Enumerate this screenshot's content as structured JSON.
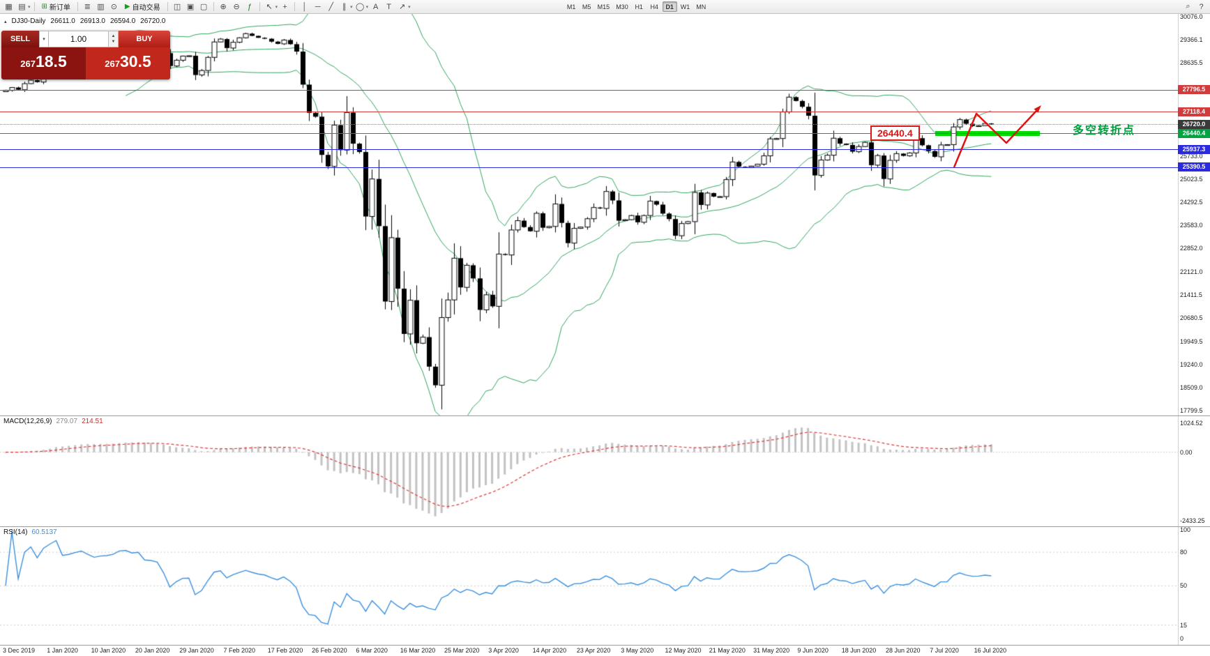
{
  "toolbar": {
    "items": [
      {
        "t": "icon",
        "name": "new-chart-icon",
        "g": "▦"
      },
      {
        "t": "icon",
        "name": "chart-profiles-icon",
        "g": "▤",
        "caret": true
      },
      {
        "t": "sep"
      },
      {
        "t": "btn",
        "name": "new-order-button",
        "icon_name": "new-order-icon",
        "g": "⊞",
        "color": "#2e8b2e",
        "label": "新订单"
      },
      {
        "t": "sep"
      },
      {
        "t": "icon",
        "name": "market-depth-icon",
        "g": "≣"
      },
      {
        "t": "icon",
        "name": "data-window-icon",
        "g": "▥"
      },
      {
        "t": "icon",
        "name": "strategy-navigator-icon",
        "g": "⊙"
      },
      {
        "t": "btn",
        "name": "auto-trading-button",
        "icon_name": "autotrade-play-icon",
        "g": "▶",
        "color": "#14a014",
        "label": "自动交易"
      },
      {
        "t": "sep"
      },
      {
        "t": "icon",
        "name": "tile-windows-icon",
        "g": "◫"
      },
      {
        "t": "icon",
        "name": "cascade-windows-icon",
        "g": "▣"
      },
      {
        "t": "icon",
        "name": "arrange-windows-icon",
        "g": "▢"
      },
      {
        "t": "sep"
      },
      {
        "t": "icon",
        "name": "zoom-in-icon",
        "g": "⊕"
      },
      {
        "t": "icon",
        "name": "zoom-out-icon",
        "g": "⊖"
      },
      {
        "t": "icon",
        "name": "indicators-icon",
        "g": "ƒ",
        "color": "#1c7a1c"
      },
      {
        "t": "sep"
      },
      {
        "t": "icon",
        "name": "cursor-icon",
        "g": "↖",
        "caret": true
      },
      {
        "t": "icon",
        "name": "crosshair-icon",
        "g": "+"
      },
      {
        "t": "sep"
      },
      {
        "t": "icon",
        "name": "vertical-line-icon",
        "g": "│"
      },
      {
        "t": "icon",
        "name": "horizontal-line-icon",
        "g": "─"
      },
      {
        "t": "icon",
        "name": "trendline-icon",
        "g": "╱"
      },
      {
        "t": "icon",
        "name": "equidistant-channel-icon",
        "g": "∥",
        "caret": true
      },
      {
        "t": "icon",
        "name": "shapes-icon",
        "g": "◯",
        "caret": true
      },
      {
        "t": "icon",
        "name": "text-icon",
        "g": "A"
      },
      {
        "t": "icon",
        "name": "text-label-icon",
        "g": "T"
      },
      {
        "t": "icon",
        "name": "arrows-icon",
        "g": "↗",
        "caret": true
      },
      {
        "t": "tf"
      },
      {
        "t": "spacer"
      },
      {
        "t": "icon",
        "name": "search-icon",
        "g": "⌕"
      },
      {
        "t": "icon",
        "name": "help-icon",
        "g": "?"
      }
    ],
    "timeframes": [
      "M1",
      "M5",
      "M15",
      "M30",
      "H1",
      "H4",
      "D1",
      "W1",
      "MN"
    ],
    "active_timeframe": "D1"
  },
  "chart": {
    "symbol_title": "DJ30-Daily",
    "ohlc": {
      "open": "26611.0",
      "high": "26913.0",
      "low": "26594.0",
      "close": "26720.0"
    },
    "price_axis_labels": [
      "30076.0",
      "29366.1",
      "28635.5",
      "25733.0",
      "25023.5",
      "24292.5",
      "23583.0",
      "22852.0",
      "22121.0",
      "21411.5",
      "20680.5",
      "19949.5",
      "19240.0",
      "18509.0",
      "17799.5"
    ]
  },
  "trade_widget": {
    "sell_label": "SELL",
    "buy_label": "BUY",
    "volume": "1.00",
    "sell_price": "26718.5",
    "buy_price": "26730.5"
  },
  "levels": [
    {
      "label": "27796.5",
      "value": 27796.5,
      "color": "#d13b3b",
      "badge": "#d13b3b"
    },
    {
      "label": "27118.4",
      "value": 27118.4,
      "color": "#d13b3b",
      "badge": "#d13b3b"
    },
    {
      "label": "26720.0",
      "value": 26720.0,
      "color": "#888888",
      "badge": "#3a3a3a",
      "style": "dotted"
    },
    {
      "label": "26440.4",
      "value": 26440.4,
      "color": "#00a344",
      "badge": "#00a344"
    },
    {
      "label": "25937.3",
      "value": 25937.3,
      "color": "#2b2bdd",
      "badge": "#2b2bdd"
    },
    {
      "label": "25390.5",
      "value": 25390.5,
      "color": "#2b2bdd",
      "badge": "#2b2bdd"
    }
  ],
  "annotations": {
    "level_callout": "26440.4",
    "turning_point_label": "多空转折点",
    "highlight_color": "#00dd00"
  },
  "macd": {
    "name": "MACD(12,26,9)",
    "value_main": "279.07",
    "value_signal": "214.51",
    "axis_labels": [
      "1024.52",
      "0.00",
      "-2433.25"
    ]
  },
  "rsi": {
    "name": "RSI(14)",
    "value": "60.5137",
    "axis_labels": [
      "100",
      "80",
      "50",
      "15",
      "0"
    ],
    "levels": [
      80,
      50,
      15
    ]
  },
  "chart_data": {
    "type": "candlestick",
    "symbol": "DJ30",
    "timeframe": "Daily",
    "title": "DJ30-Daily",
    "x_labels": [
      "3 Dec 2019",
      "1 Jan 2020",
      "10 Jan 2020",
      "20 Jan 2020",
      "29 Jan 2020",
      "7 Feb 2020",
      "17 Feb 2020",
      "26 Feb 2020",
      "6 Mar 2020",
      "16 Mar 2020",
      "25 Mar 2020",
      "3 Apr 2020",
      "14 Apr 2020",
      "23 Apr 2020",
      "3 May 2020",
      "12 May 2020",
      "21 May 2020",
      "31 May 2020",
      "9 Jun 2020",
      "18 Jun 2020",
      "28 Jun 2020",
      "7 Jul 2020",
      "16 Jul 2020"
    ],
    "price_range": {
      "min": 17799.5,
      "max": 30076.0
    },
    "closes": [
      27780,
      27870,
      27800,
      27990,
      28100,
      28040,
      28310,
      28540,
      28870,
      28640,
      28700,
      28830,
      28960,
      28890,
      28820,
      28910,
      28940,
      29030,
      29300,
      29350,
      29300,
      29350,
      29200,
      29190,
      29160,
      28940,
      28540,
      28720,
      28850,
      28860,
      28260,
      28400,
      28810,
      29290,
      29380,
      29100,
      29280,
      29420,
      29550,
      29480,
      29420,
      29390,
      29300,
      29230,
      29350,
      29220,
      28990,
      27960,
      27080,
      26960,
      25770,
      25410,
      26700,
      25920,
      27090,
      26120,
      25860,
      23850,
      25020,
      23550,
      21200,
      23190,
      21600,
      20190,
      21240,
      19900,
      20090,
      19170,
      18590,
      20700,
      21250,
      22550,
      21640,
      22330,
      21920,
      20940,
      21410,
      21050,
      22680,
      22650,
      23430,
      23720,
      23520,
      23390,
      23950,
      23500,
      23540,
      24240,
      23650,
      23020,
      23480,
      23520,
      23780,
      24130,
      24100,
      24630,
      24350,
      23720,
      23750,
      23880,
      23670,
      23880,
      24330,
      24220,
      23940,
      23770,
      23250,
      23630,
      23690,
      24600,
      24210,
      24580,
      24470,
      24470,
      25000,
      25550,
      25400,
      25380,
      25420,
      25480,
      25740,
      26270,
      26280,
      27110,
      27570,
      27450,
      27270,
      26990,
      25130,
      25610,
      25760,
      26290,
      26120,
      26080,
      25870,
      26030,
      26160,
      25450,
      25750,
      25020,
      25600,
      25810,
      25740,
      25830,
      26290,
      26070,
      25890,
      25710,
      26080,
      26090,
      26640,
      26870,
      26740,
      26670,
      26680,
      26750,
      26720
    ],
    "indicators": {
      "bollinger": {
        "period": 20,
        "deviation": 2,
        "color": "#2fa45c"
      },
      "macd": {
        "fast": 12,
        "slow": 26,
        "signal": 9,
        "current_macd": 279.07,
        "current_signal": 214.51,
        "range": {
          "min": -2433.25,
          "max": 1024.52
        }
      },
      "rsi": {
        "period": 14,
        "current": 60.5137
      }
    },
    "last_candle_ohlc": {
      "open": 26611.0,
      "high": 26913.0,
      "low": 26594.0,
      "close": 26720.0
    },
    "horizontal_levels": [
      27796.5,
      27118.4,
      26720.0,
      26440.4,
      25937.3,
      25390.5
    ]
  }
}
